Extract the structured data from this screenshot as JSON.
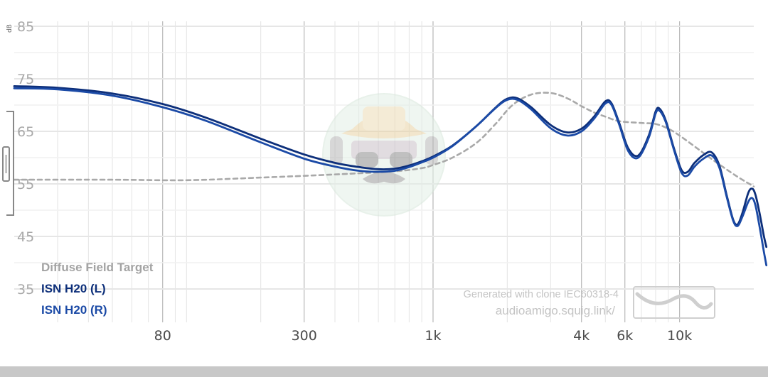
{
  "chart_data": {
    "type": "line",
    "xscale": "log",
    "xlim": [
      20,
      20000
    ],
    "ylim": [
      30,
      85
    ],
    "y_unit": "dB",
    "y_ticks": [
      "85",
      "75",
      "65",
      "55",
      "45",
      "35"
    ],
    "x_ticks": [
      "80",
      "300",
      "1k",
      "4k",
      "6k",
      "10k"
    ],
    "grid": true,
    "legend_position": "bottom-left",
    "series": [
      {
        "name": "Diffuse Field Target",
        "style": "dashed",
        "color": "#a9a9a9",
        "points": [
          [
            20,
            55.8
          ],
          [
            50,
            55.8
          ],
          [
            100,
            55.7
          ],
          [
            200,
            56.2
          ],
          [
            400,
            56.8
          ],
          [
            700,
            57.4
          ],
          [
            900,
            58
          ],
          [
            1000,
            58.6
          ],
          [
            1200,
            60
          ],
          [
            1500,
            62.8
          ],
          [
            1800,
            66.5
          ],
          [
            2100,
            70
          ],
          [
            2500,
            72
          ],
          [
            3000,
            72.3
          ],
          [
            3500,
            71.3
          ],
          [
            4000,
            69.8
          ],
          [
            4500,
            68.6
          ],
          [
            5000,
            67.8
          ],
          [
            5500,
            67.1
          ],
          [
            6000,
            66.8
          ],
          [
            7000,
            66.6
          ],
          [
            8000,
            66.4
          ],
          [
            9000,
            65.5
          ],
          [
            10000,
            64.2
          ],
          [
            12000,
            61.5
          ],
          [
            14000,
            59.2
          ],
          [
            17000,
            56.5
          ],
          [
            20000,
            54.5
          ]
        ]
      },
      {
        "name": "ISN H20 (L)",
        "color": "#0d2f7a",
        "points": [
          [
            20,
            73.6
          ],
          [
            30,
            73.3
          ],
          [
            50,
            72.2
          ],
          [
            80,
            70.2
          ],
          [
            120,
            67.6
          ],
          [
            200,
            63.6
          ],
          [
            300,
            60.6
          ],
          [
            400,
            59
          ],
          [
            500,
            58.2
          ],
          [
            600,
            57.8
          ],
          [
            700,
            57.9
          ],
          [
            800,
            58.5
          ],
          [
            900,
            59.3
          ],
          [
            1000,
            60.2
          ],
          [
            1200,
            62.3
          ],
          [
            1500,
            66
          ],
          [
            1800,
            69.6
          ],
          [
            2000,
            71.2
          ],
          [
            2200,
            71.3
          ],
          [
            2500,
            69.6
          ],
          [
            3000,
            66.2
          ],
          [
            3500,
            64.8
          ],
          [
            4000,
            65.5
          ],
          [
            4500,
            67.8
          ],
          [
            5000,
            70.7
          ],
          [
            5300,
            70.3
          ],
          [
            5700,
            66.5
          ],
          [
            6200,
            61.7
          ],
          [
            6800,
            60.4
          ],
          [
            7500,
            64.2
          ],
          [
            8000,
            68.8
          ],
          [
            8300,
            69.3
          ],
          [
            8800,
            67
          ],
          [
            9500,
            61.7
          ],
          [
            10200,
            57.6
          ],
          [
            10800,
            57.3
          ],
          [
            11500,
            59
          ],
          [
            12500,
            60.5
          ],
          [
            13500,
            61
          ],
          [
            14500,
            58.5
          ],
          [
            15500,
            53
          ],
          [
            16500,
            48.2
          ],
          [
            17200,
            47.3
          ],
          [
            18000,
            49.5
          ],
          [
            19000,
            53.3
          ],
          [
            19700,
            54.1
          ],
          [
            20300,
            53
          ],
          [
            21000,
            50
          ],
          [
            22000,
            45
          ],
          [
            22500,
            43
          ]
        ]
      },
      {
        "name": "ISN H20 (R)",
        "color": "#1b4aa6",
        "points": [
          [
            20,
            73.2
          ],
          [
            30,
            73
          ],
          [
            50,
            71.8
          ],
          [
            80,
            69.6
          ],
          [
            120,
            67
          ],
          [
            200,
            62.9
          ],
          [
            300,
            59.8
          ],
          [
            400,
            58.3
          ],
          [
            500,
            57.5
          ],
          [
            600,
            57.3
          ],
          [
            700,
            57.5
          ],
          [
            800,
            58.2
          ],
          [
            900,
            59.1
          ],
          [
            1000,
            60
          ],
          [
            1200,
            62.2
          ],
          [
            1500,
            66
          ],
          [
            1800,
            69.5
          ],
          [
            2000,
            71
          ],
          [
            2200,
            71
          ],
          [
            2500,
            69.2
          ],
          [
            3000,
            65.6
          ],
          [
            3500,
            64.2
          ],
          [
            4000,
            65
          ],
          [
            4500,
            67.4
          ],
          [
            5000,
            70.3
          ],
          [
            5300,
            70
          ],
          [
            5700,
            66.2
          ],
          [
            6200,
            61.2
          ],
          [
            6800,
            60
          ],
          [
            7500,
            63.8
          ],
          [
            8000,
            68.4
          ],
          [
            8300,
            68.9
          ],
          [
            8800,
            66.7
          ],
          [
            9500,
            61.4
          ],
          [
            10200,
            57.1
          ],
          [
            10800,
            56.6
          ],
          [
            11500,
            58.3
          ],
          [
            12500,
            59.8
          ],
          [
            13500,
            60.4
          ],
          [
            14500,
            58.1
          ],
          [
            15500,
            52.7
          ],
          [
            16500,
            48
          ],
          [
            17200,
            47
          ],
          [
            18000,
            48.8
          ],
          [
            19000,
            51.6
          ],
          [
            19700,
            52.3
          ],
          [
            20300,
            51
          ],
          [
            21000,
            47.5
          ],
          [
            22000,
            42
          ],
          [
            22500,
            39.5
          ]
        ]
      }
    ]
  },
  "watermark": {
    "line1": "Generated with clone IEC60318-4",
    "line2": "audioamigo.squig.link/"
  },
  "colors": {
    "grid": "#e4e4e4",
    "grid_major": "#b8b8b8",
    "target": "#a9a9a9"
  }
}
